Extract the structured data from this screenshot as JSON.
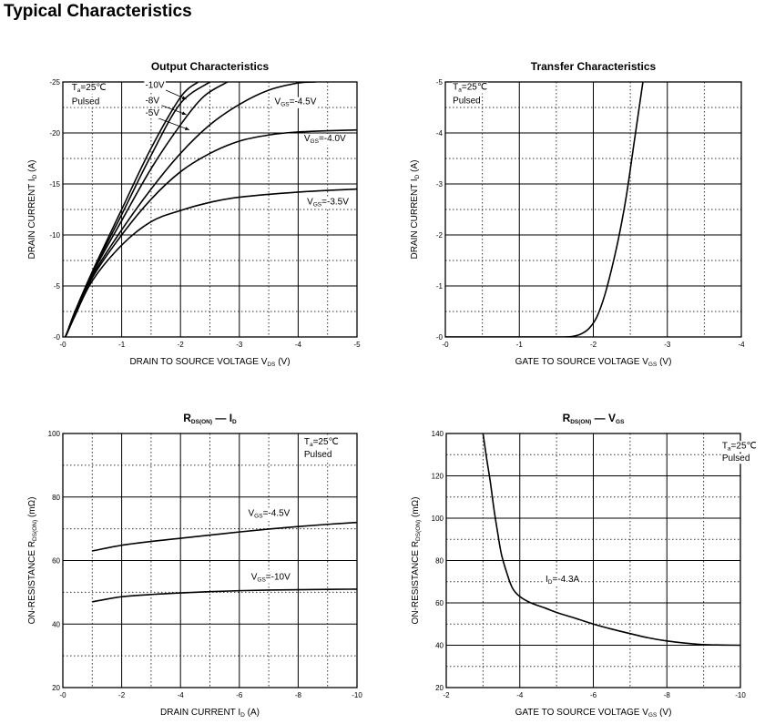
{
  "page_title": "Typical Characteristics",
  "chart_data": [
    {
      "type": "line",
      "title": [
        {
          "t": "Output Characteristics"
        }
      ],
      "xlabel": [
        {
          "t": "DRAIN TO SOURCE VOLTAGE    V"
        },
        {
          "s": "DS"
        },
        {
          "t": "    (V)"
        }
      ],
      "ylabel": [
        {
          "t": "DRAIN CURRENT    I"
        },
        {
          "s": "D"
        },
        {
          "t": "    (A)"
        }
      ],
      "xlim": [
        0,
        -5
      ],
      "ylim": [
        0,
        -25
      ],
      "xticks": [
        0,
        -1,
        -2,
        -3,
        -4,
        -5
      ],
      "xtick_labels": [
        "-0",
        "-1",
        "-2",
        "-3",
        "-4",
        "-5"
      ],
      "yticks": [
        0,
        -5,
        -10,
        -15,
        -20,
        -25
      ],
      "ytick_labels": [
        "-0",
        "-5",
        "-10",
        "-15",
        "-20",
        "-25"
      ],
      "grid": "major solid, minor dotted",
      "annotations": [
        {
          "parts": [
            {
              "t": "T"
            },
            {
              "s": "a"
            },
            {
              "t": "=25℃"
            }
          ],
          "at": [
            -0.15,
            -24.2
          ]
        },
        {
          "parts": [
            {
              "t": "Pulsed"
            }
          ],
          "at": [
            -0.15,
            -22.8
          ]
        },
        {
          "parts": [
            {
              "t": "-10V"
            }
          ],
          "at": [
            -1.4,
            -24.4
          ]
        },
        {
          "parts": [
            {
              "t": "-8V"
            }
          ],
          "at": [
            -1.4,
            -22.9
          ]
        },
        {
          "parts": [
            {
              "t": "-5V"
            }
          ],
          "at": [
            -1.4,
            -21.7
          ]
        },
        {
          "parts": [
            {
              "t": "V"
            },
            {
              "s": "GS"
            },
            {
              "t": "=-4.5V"
            }
          ],
          "at": [
            -3.6,
            -22.8
          ]
        },
        {
          "parts": [
            {
              "t": "V"
            },
            {
              "s": "GS"
            },
            {
              "t": "=-4.0V"
            }
          ],
          "at": [
            -4.1,
            -19.2
          ]
        },
        {
          "parts": [
            {
              "t": "V"
            },
            {
              "s": "GS"
            },
            {
              "t": "=-3.5V"
            }
          ],
          "at": [
            -4.15,
            -13
          ]
        }
      ],
      "arrows": [
        [
          [
            -1.75,
            -24.2
          ],
          [
            -2.1,
            -23.3
          ]
        ],
        [
          [
            -1.68,
            -22.7
          ],
          [
            -2.1,
            -21.8
          ]
        ],
        [
          [
            -1.6,
            -21.5
          ],
          [
            -2.15,
            -20.3
          ]
        ]
      ],
      "series": [
        {
          "name": "VGS=-10V",
          "x": [
            0,
            -0.05,
            -0.2,
            -0.5,
            -1,
            -1.5,
            -2,
            -2.3
          ],
          "y": [
            0,
            -0.1,
            -2.4,
            -6.4,
            -12.5,
            -18.5,
            -23.5,
            -25
          ]
        },
        {
          "name": "VGS=-8V",
          "x": [
            0,
            -0.05,
            -0.2,
            -0.5,
            -1,
            -1.5,
            -2,
            -2.5
          ],
          "y": [
            0,
            -0.1,
            -2.4,
            -6.3,
            -12,
            -17.8,
            -22.9,
            -25
          ]
        },
        {
          "name": "VGS=-5V",
          "x": [
            0,
            -0.05,
            -0.2,
            -0.5,
            -1,
            -1.5,
            -2,
            -2.4,
            -2.8
          ],
          "y": [
            0,
            -0.1,
            -2.3,
            -6.2,
            -11.4,
            -16.5,
            -20.8,
            -23.6,
            -25
          ]
        },
        {
          "name": "VGS=-4.5V",
          "x": [
            0,
            -0.05,
            -0.2,
            -0.5,
            -1,
            -1.5,
            -2,
            -2.5,
            -3,
            -3.5,
            -4,
            -4.3
          ],
          "y": [
            0,
            -0.1,
            -2.3,
            -6,
            -10.5,
            -14.5,
            -18,
            -20.8,
            -22.8,
            -24.2,
            -24.9,
            -25
          ]
        },
        {
          "name": "VGS=-4.0V",
          "x": [
            0,
            -0.05,
            -0.2,
            -0.5,
            -1,
            -1.5,
            -2,
            -2.5,
            -3,
            -3.5,
            -4,
            -5
          ],
          "y": [
            0,
            -0.1,
            -2.2,
            -5.8,
            -10,
            -13.5,
            -16.2,
            -18,
            -19.2,
            -19.8,
            -20.1,
            -20.3
          ]
        },
        {
          "name": "VGS=-3.5V",
          "x": [
            0,
            -0.05,
            -0.2,
            -0.5,
            -1,
            -1.5,
            -2,
            -2.5,
            -3,
            -4,
            -5
          ],
          "y": [
            0,
            -0.1,
            -2,
            -5.5,
            -9,
            -11.3,
            -12.4,
            -13.2,
            -13.7,
            -14.2,
            -14.5
          ]
        }
      ]
    },
    {
      "type": "line",
      "title": [
        {
          "t": "Transfer Characteristics"
        }
      ],
      "xlabel": [
        {
          "t": "GATE TO SOURCE VOLTAGE    V"
        },
        {
          "s": "GS"
        },
        {
          "t": "    (V)"
        }
      ],
      "ylabel": [
        {
          "t": "DRAIN CURRENT    I"
        },
        {
          "s": "D"
        },
        {
          "t": "    (A)"
        }
      ],
      "xlim": [
        0,
        -4
      ],
      "ylim": [
        0,
        -5
      ],
      "xticks": [
        0,
        -1,
        -2,
        -3,
        -4
      ],
      "xtick_labels": [
        "-0",
        "-1",
        "-2",
        "-3",
        "-4"
      ],
      "yticks": [
        0,
        -1,
        -2,
        -3,
        -4,
        -5
      ],
      "ytick_labels": [
        "-0",
        "-1",
        "-2",
        "-3",
        "-4",
        "-5"
      ],
      "grid": "major solid, minor dotted",
      "annotations": [
        {
          "parts": [
            {
              "t": "T"
            },
            {
              "s": "a"
            },
            {
              "t": "=25℃"
            }
          ],
          "at": [
            -0.1,
            -4.85
          ]
        },
        {
          "parts": [
            {
              "t": "Pulsed"
            }
          ],
          "at": [
            -0.1,
            -4.58
          ]
        }
      ],
      "arrows": [],
      "series": [
        {
          "name": "Id",
          "x": [
            0,
            -1,
            -1.6,
            -1.75,
            -1.85,
            -1.95,
            -2.05,
            -2.15,
            -2.25,
            -2.35,
            -2.45,
            -2.55,
            -2.62,
            -2.67
          ],
          "y": [
            0,
            0,
            0,
            -0.02,
            -0.07,
            -0.18,
            -0.4,
            -0.8,
            -1.35,
            -2.0,
            -2.8,
            -3.8,
            -4.5,
            -5
          ]
        }
      ]
    },
    {
      "type": "line",
      "title": [
        {
          "t": "R"
        },
        {
          "s": "DS(ON)"
        },
        {
          "t": "   —   I"
        },
        {
          "s": "D"
        }
      ],
      "xlabel": [
        {
          "t": "DRAIN CURRENT    I"
        },
        {
          "s": "D"
        },
        {
          "t": "    (A)"
        }
      ],
      "ylabel": [
        {
          "t": "ON-RESISTANCE    R"
        },
        {
          "s": "DS(ON)"
        },
        {
          "t": "    (mΩ)"
        }
      ],
      "xlim": [
        0,
        -10
      ],
      "ylim": [
        20,
        100
      ],
      "xticks": [
        0,
        -2,
        -4,
        -6,
        -8,
        -10
      ],
      "xtick_labels": [
        "-0",
        "-2",
        "-4",
        "-6",
        "-8",
        "-10"
      ],
      "yticks": [
        20,
        40,
        60,
        80,
        100
      ],
      "ytick_labels": [
        "20",
        "40",
        "60",
        "80",
        "100"
      ],
      "grid": "major solid, minor dotted",
      "annotations": [
        {
          "parts": [
            {
              "t": "T"
            },
            {
              "s": "a"
            },
            {
              "t": "=25℃"
            }
          ],
          "at": [
            -8.2,
            96.5
          ]
        },
        {
          "parts": [
            {
              "t": "Pulsed"
            }
          ],
          "at": [
            -8.2,
            92.5
          ]
        },
        {
          "parts": [
            {
              "t": "V"
            },
            {
              "s": "GS"
            },
            {
              "t": "=-4.5V"
            }
          ],
          "at": [
            -6.3,
            74
          ]
        },
        {
          "parts": [
            {
              "t": "V"
            },
            {
              "s": "GS"
            },
            {
              "t": "=-10V"
            }
          ],
          "at": [
            -6.4,
            54
          ]
        }
      ],
      "arrows": [],
      "series": [
        {
          "name": "VGS=-4.5V",
          "x": [
            -1,
            -2,
            -3,
            -4,
            -5,
            -6,
            -7,
            -8,
            -9,
            -10
          ],
          "y": [
            63,
            64.8,
            66,
            67,
            68,
            69,
            69.9,
            70.7,
            71.4,
            72
          ]
        },
        {
          "name": "VGS=-10V",
          "x": [
            -1,
            -2,
            -3,
            -4,
            -5,
            -6,
            -7,
            -8,
            -9,
            -10
          ],
          "y": [
            47,
            48.6,
            49.3,
            49.8,
            50.2,
            50.5,
            50.7,
            50.8,
            50.9,
            51
          ]
        }
      ]
    },
    {
      "type": "line",
      "title": [
        {
          "t": "R"
        },
        {
          "s": "DS(ON)"
        },
        {
          "t": "   —   V"
        },
        {
          "s": "GS"
        }
      ],
      "xlabel": [
        {
          "t": "GATE TO SOURCE VOLTAGE    V"
        },
        {
          "s": "GS"
        },
        {
          "t": "    (V)"
        }
      ],
      "ylabel": [
        {
          "t": "ON-RESISTANCE    R"
        },
        {
          "s": "DS(ON)"
        },
        {
          "t": "    (mΩ)"
        }
      ],
      "xlim": [
        -2,
        -10
      ],
      "ylim": [
        20,
        140
      ],
      "xticks": [
        -2,
        -4,
        -6,
        -8,
        -10
      ],
      "xtick_labels": [
        "-2",
        "-4",
        "-6",
        "-8",
        "-10"
      ],
      "yticks": [
        20,
        40,
        60,
        80,
        100,
        120,
        140
      ],
      "ytick_labels": [
        "20",
        "40",
        "60",
        "80",
        "100",
        "120",
        "140"
      ],
      "grid": "major solid, minor dotted",
      "annotations": [
        {
          "parts": [
            {
              "t": "T"
            },
            {
              "s": "a"
            },
            {
              "t": "=25℃"
            }
          ],
          "at": [
            -9.5,
            133
          ]
        },
        {
          "parts": [
            {
              "t": "Pulsed"
            }
          ],
          "at": [
            -9.5,
            127
          ]
        },
        {
          "parts": [
            {
              "t": "I"
            },
            {
              "s": "D"
            },
            {
              "t": "=-4.3A"
            }
          ],
          "at": [
            -4.7,
            70
          ]
        }
      ],
      "arrows": [],
      "series": [
        {
          "name": "ID=-4.3A",
          "x": [
            -3,
            -3.1,
            -3.2,
            -3.3,
            -3.4,
            -3.5,
            -3.65,
            -3.8,
            -4,
            -4.3,
            -4.7,
            -5,
            -5.5,
            -6,
            -6.5,
            -7,
            -7.5,
            -8,
            -8.5,
            -9,
            -9.5,
            -10
          ],
          "y": [
            140,
            128,
            117,
            104,
            93,
            83,
            74,
            67,
            63,
            60,
            57.5,
            55.5,
            52.8,
            50,
            47.6,
            45.5,
            43.5,
            42,
            41,
            40.3,
            40.1,
            40
          ]
        }
      ]
    }
  ]
}
